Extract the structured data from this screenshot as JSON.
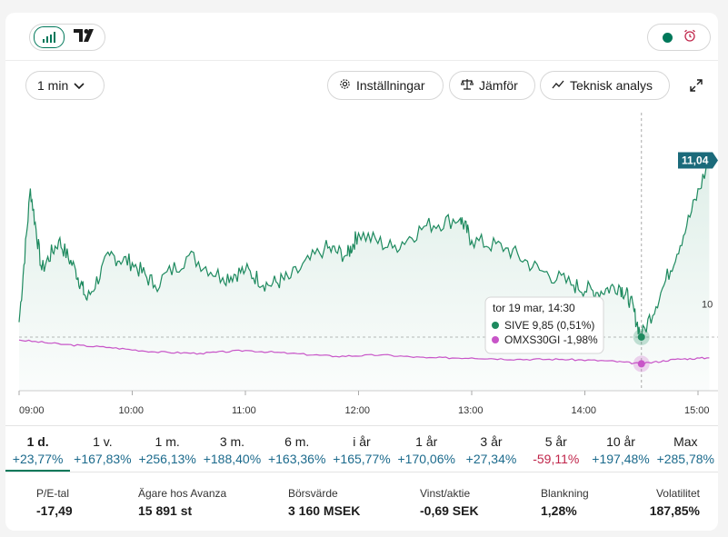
{
  "header": {
    "status": "live"
  },
  "toolbar": {
    "interval": "1 min",
    "settings": "Inställningar",
    "compare": "Jämför",
    "technical": "Teknisk analys"
  },
  "chart_data": {
    "type": "line",
    "x_labels": [
      "09:00",
      "10:00",
      "11:00",
      "12:00",
      "13:00",
      "14:00",
      "15:00"
    ],
    "y_tick": "10",
    "ylim": [
      9.55,
      11.3
    ],
    "last_price": "11,04",
    "series": [
      {
        "name": "SIVE",
        "color": "#1e8a5f",
        "points": [
          [
            9.0,
            9.95
          ],
          [
            9.1,
            10.85
          ],
          [
            9.2,
            10.3
          ],
          [
            9.35,
            10.5
          ],
          [
            9.5,
            10.3
          ],
          [
            9.6,
            10.1
          ],
          [
            9.8,
            10.4
          ],
          [
            10.0,
            10.35
          ],
          [
            10.2,
            10.2
          ],
          [
            10.5,
            10.4
          ],
          [
            10.8,
            10.25
          ],
          [
            11.0,
            10.3
          ],
          [
            11.2,
            10.2
          ],
          [
            11.4,
            10.25
          ],
          [
            11.7,
            10.45
          ],
          [
            11.9,
            10.4
          ],
          [
            12.0,
            10.55
          ],
          [
            12.3,
            10.45
          ],
          [
            12.6,
            10.6
          ],
          [
            12.9,
            10.65
          ],
          [
            13.0,
            10.5
          ],
          [
            13.3,
            10.45
          ],
          [
            13.6,
            10.3
          ],
          [
            13.9,
            10.2
          ],
          [
            14.1,
            10.15
          ],
          [
            14.3,
            10.2
          ],
          [
            14.4,
            10.1
          ],
          [
            14.5,
            9.85
          ],
          [
            14.7,
            10.2
          ],
          [
            14.9,
            10.6
          ],
          [
            15.1,
            11.04
          ]
        ]
      },
      {
        "name": "OMXS30GI",
        "color": "#c855c8",
        "points": [
          [
            9.0,
            9.83
          ],
          [
            9.4,
            9.8
          ],
          [
            9.8,
            9.78
          ],
          [
            10.2,
            9.75
          ],
          [
            10.6,
            9.74
          ],
          [
            11.0,
            9.76
          ],
          [
            11.4,
            9.74
          ],
          [
            11.8,
            9.72
          ],
          [
            12.2,
            9.73
          ],
          [
            12.6,
            9.71
          ],
          [
            13.0,
            9.71
          ],
          [
            13.4,
            9.7
          ],
          [
            13.8,
            9.7
          ],
          [
            14.2,
            9.69
          ],
          [
            14.5,
            9.67
          ],
          [
            14.8,
            9.7
          ],
          [
            15.1,
            9.71
          ]
        ]
      }
    ],
    "tooltip": {
      "title": "tor 19 mar, 14:30",
      "rows": [
        {
          "name": "SIVE",
          "value": "9,85 (0,51%)",
          "color": "#1e8a5f"
        },
        {
          "name": "OMXS30GI",
          "value": "-1,98%",
          "color": "#c855c8"
        }
      ]
    }
  },
  "periods": [
    {
      "label": "1 d.",
      "value": "+23,77%",
      "active": true,
      "positive": true
    },
    {
      "label": "1 v.",
      "value": "+167,83%",
      "positive": true
    },
    {
      "label": "1 m.",
      "value": "+256,13%",
      "positive": true
    },
    {
      "label": "3 m.",
      "value": "+188,40%",
      "positive": true
    },
    {
      "label": "6 m.",
      "value": "+163,36%",
      "positive": true
    },
    {
      "label": "i år",
      "value": "+165,77%",
      "positive": true
    },
    {
      "label": "1 år",
      "value": "+170,06%",
      "positive": true
    },
    {
      "label": "3 år",
      "value": "+27,34%",
      "positive": true
    },
    {
      "label": "5 år",
      "value": "-59,11%",
      "positive": false
    },
    {
      "label": "10 år",
      "value": "+197,48%",
      "positive": true
    },
    {
      "label": "Max",
      "value": "+285,78%",
      "positive": true
    }
  ],
  "stats": [
    {
      "label": "P/E-tal",
      "value": "-17,49"
    },
    {
      "label": "Ägare hos Avanza",
      "value": "15 891 st"
    },
    {
      "label": "Börsvärde",
      "value": "3 160 MSEK"
    },
    {
      "label": "Vinst/aktie",
      "value": "-0,69 SEK"
    },
    {
      "label": "Blankning",
      "value": "1,28%"
    },
    {
      "label": "Volatilitet",
      "value": "187,85%"
    }
  ],
  "colors": {
    "accent": "#00785a",
    "positive": "#1b6a8c",
    "negative": "#c0254a"
  }
}
